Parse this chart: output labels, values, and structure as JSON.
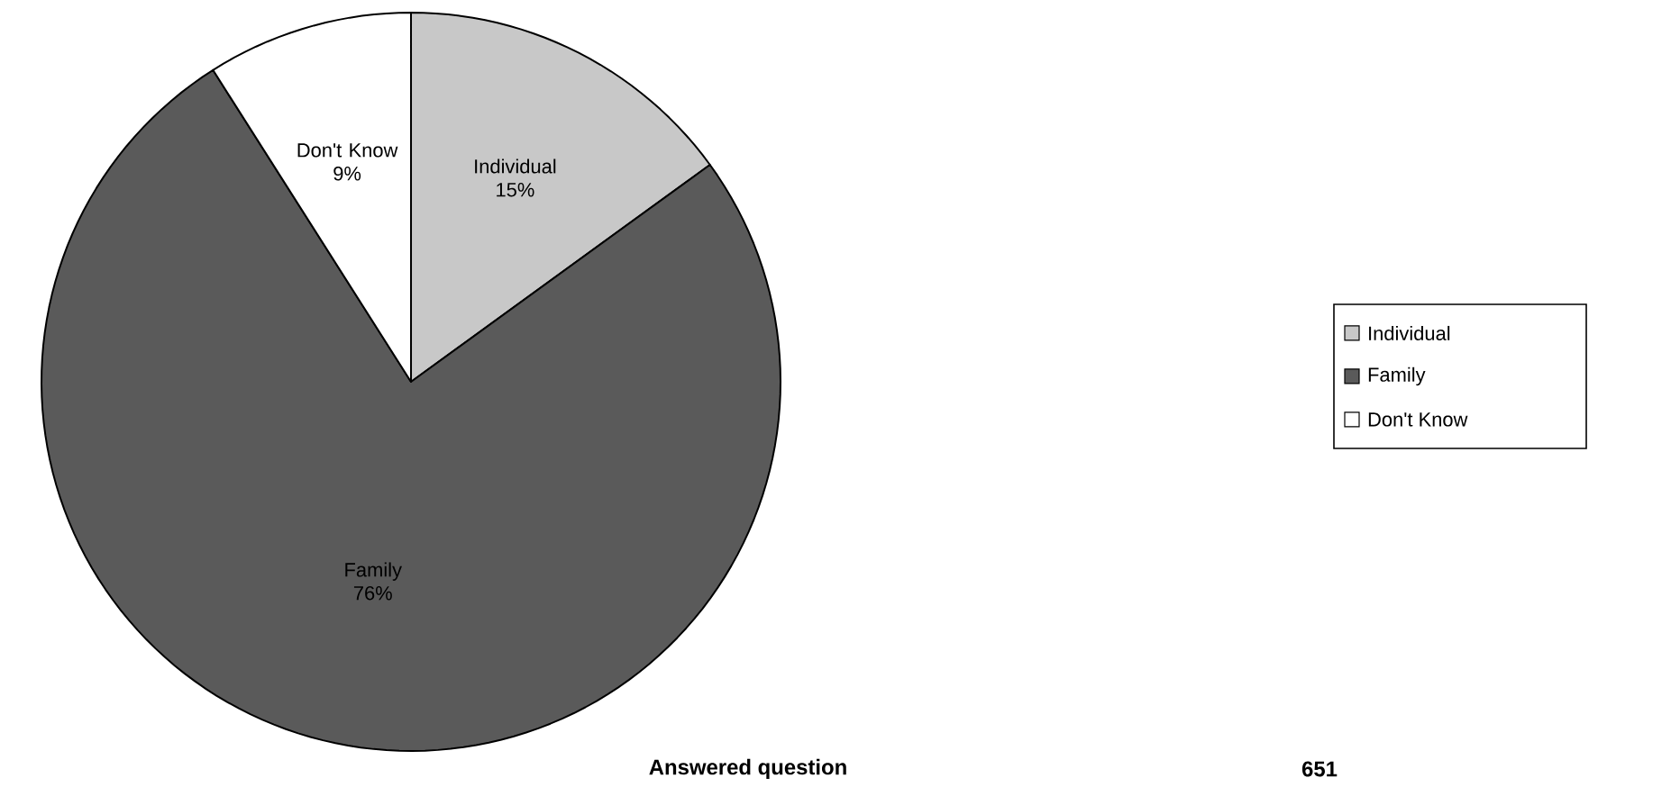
{
  "chart_data": {
    "type": "pie",
    "categories": [
      "Individual",
      "Family",
      "Don't Know"
    ],
    "values": [
      15,
      76,
      9
    ],
    "value_labels": [
      "15%",
      "76%",
      "9%"
    ],
    "colors": [
      "#c8c8c8",
      "#5a5a5a",
      "#ffffff"
    ],
    "legend": "right",
    "annotations": [
      "Answered question",
      "651"
    ]
  }
}
